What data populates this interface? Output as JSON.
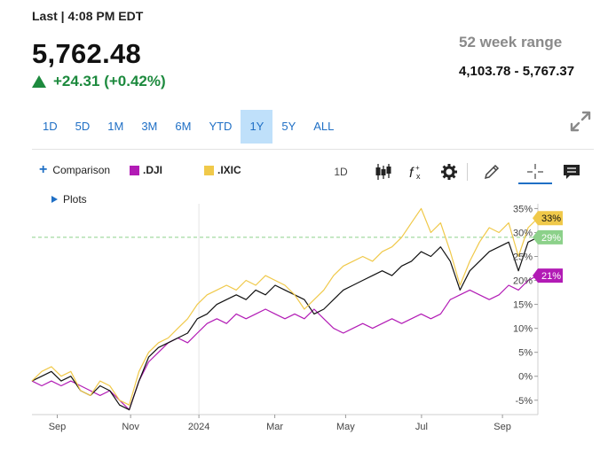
{
  "header": {
    "last_label": "Last | 4:08 PM EDT",
    "price": "5,762.48",
    "change": "+24.31 (+0.42%)",
    "range_label": "52 week range",
    "range_value": "4,103.78 - 5,767.37"
  },
  "range_tabs": [
    {
      "label": "1D",
      "active": false
    },
    {
      "label": "5D",
      "active": false
    },
    {
      "label": "1M",
      "active": false
    },
    {
      "label": "3M",
      "active": false
    },
    {
      "label": "6M",
      "active": false
    },
    {
      "label": "YTD",
      "active": false
    },
    {
      "label": "1Y",
      "active": true
    },
    {
      "label": "5Y",
      "active": false
    },
    {
      "label": "ALL",
      "active": false
    }
  ],
  "toolbar": {
    "comparison_label": "Comparison",
    "legend": [
      {
        "label": ".DJI",
        "color": "#b21bb5"
      },
      {
        "label": ".IXIC",
        "color": "#f0c94a"
      }
    ],
    "interval_label": "1D",
    "tools": [
      "candlestick-icon",
      "function-icon",
      "gear-icon",
      "pencil-icon",
      "crosshair-icon",
      "comment-icon"
    ]
  },
  "plots_label": "Plots",
  "colors": {
    "main": "#111111",
    "dji": "#b21bb5",
    "ixic": "#f0c94a",
    "accent": "#1f6fc5",
    "positive": "#1d8a3e",
    "spx_badge": "#8cd18a"
  },
  "chart_data": {
    "type": "line",
    "x_ticks": [
      "Sep",
      "Nov",
      "2024",
      "Mar",
      "May",
      "Jul",
      "Sep"
    ],
    "y_ticks": [
      "35%",
      "30%",
      "25%",
      "20%",
      "15%",
      "10%",
      "5%",
      "0%",
      "-5%"
    ],
    "ylim": [
      -8,
      36
    ],
    "badges": [
      {
        "label": "33%",
        "value": 33,
        "color": "#f0c94a"
      },
      {
        "label": "29%",
        "value": 29,
        "color": "#8cd18a"
      },
      {
        "label": "21%",
        "value": 21,
        "color": "#b21bb5"
      }
    ],
    "x_values": [
      0,
      1,
      2,
      3,
      4,
      5,
      6,
      7,
      8,
      9,
      10,
      11,
      12,
      13,
      14,
      15,
      16,
      17,
      18,
      19,
      20,
      21,
      22,
      23,
      24,
      25,
      26,
      27,
      28,
      29,
      30,
      31,
      32,
      33,
      34,
      35,
      36,
      37,
      38,
      39,
      40,
      41,
      42,
      43,
      44,
      45,
      46,
      47,
      48,
      49,
      50,
      51,
      52
    ],
    "series": [
      {
        "name": ".DJI",
        "color": "#b21bb5",
        "values": [
          -1,
          -2,
          -1,
          -2,
          -1,
          -2,
          -3,
          -4,
          -3,
          -5,
          -7,
          -1,
          3,
          5,
          7,
          8,
          7,
          9,
          11,
          12,
          11,
          13,
          12,
          13,
          14,
          13,
          12,
          13,
          12,
          14,
          12,
          10,
          9,
          10,
          11,
          10,
          11,
          12,
          11,
          12,
          13,
          12,
          13,
          16,
          17,
          18,
          17,
          16,
          17,
          19,
          18,
          20,
          21
        ]
      },
      {
        "name": "",
        "color": "#111111",
        "values": [
          -1,
          0,
          1,
          -1,
          0,
          -3,
          -4,
          -2,
          -3,
          -6,
          -7,
          -1,
          4,
          6,
          7,
          8,
          9,
          12,
          13,
          15,
          16,
          17,
          16,
          18,
          17,
          19,
          18,
          17,
          16,
          13,
          14,
          16,
          18,
          19,
          20,
          21,
          22,
          21,
          23,
          24,
          26,
          25,
          27,
          24,
          18,
          22,
          24,
          26,
          27,
          28,
          22,
          28,
          29
        ]
      },
      {
        "name": ".IXIC",
        "color": "#f0c94a",
        "values": [
          -1,
          1,
          2,
          0,
          1,
          -3,
          -4,
          -1,
          -2,
          -5,
          -6,
          1,
          5,
          7,
          8,
          10,
          12,
          15,
          17,
          18,
          19,
          18,
          20,
          19,
          21,
          20,
          19,
          17,
          14,
          16,
          18,
          21,
          23,
          24,
          25,
          24,
          26,
          27,
          29,
          32,
          35,
          30,
          32,
          26,
          19,
          24,
          28,
          31,
          30,
          32,
          25,
          31,
          33
        ]
      }
    ]
  }
}
